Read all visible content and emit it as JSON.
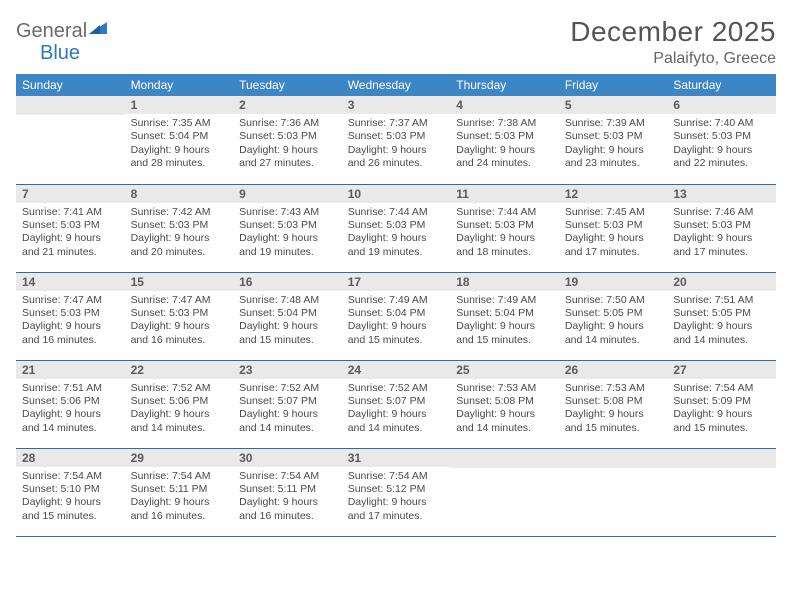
{
  "brand": {
    "part1": "General",
    "part2": "Blue"
  },
  "title": "December 2025",
  "location": "Palaifyto, Greece",
  "colors": {
    "header_bg": "#3d86c6",
    "header_text": "#ffffff",
    "daynum_bg": "#e9e9e9",
    "row_border": "#2f6aa8",
    "text": "#4a4a4a",
    "title": "#555555",
    "brand_gray": "#6b6b6b",
    "brand_blue": "#2f78c2"
  },
  "weekdays": [
    "Sunday",
    "Monday",
    "Tuesday",
    "Wednesday",
    "Thursday",
    "Friday",
    "Saturday"
  ],
  "start_blank": 1,
  "days": [
    {
      "n": 1,
      "sr": "7:35 AM",
      "ss": "5:04 PM",
      "dl": "9 hours and 28 minutes."
    },
    {
      "n": 2,
      "sr": "7:36 AM",
      "ss": "5:03 PM",
      "dl": "9 hours and 27 minutes."
    },
    {
      "n": 3,
      "sr": "7:37 AM",
      "ss": "5:03 PM",
      "dl": "9 hours and 26 minutes."
    },
    {
      "n": 4,
      "sr": "7:38 AM",
      "ss": "5:03 PM",
      "dl": "9 hours and 24 minutes."
    },
    {
      "n": 5,
      "sr": "7:39 AM",
      "ss": "5:03 PM",
      "dl": "9 hours and 23 minutes."
    },
    {
      "n": 6,
      "sr": "7:40 AM",
      "ss": "5:03 PM",
      "dl": "9 hours and 22 minutes."
    },
    {
      "n": 7,
      "sr": "7:41 AM",
      "ss": "5:03 PM",
      "dl": "9 hours and 21 minutes."
    },
    {
      "n": 8,
      "sr": "7:42 AM",
      "ss": "5:03 PM",
      "dl": "9 hours and 20 minutes."
    },
    {
      "n": 9,
      "sr": "7:43 AM",
      "ss": "5:03 PM",
      "dl": "9 hours and 19 minutes."
    },
    {
      "n": 10,
      "sr": "7:44 AM",
      "ss": "5:03 PM",
      "dl": "9 hours and 19 minutes."
    },
    {
      "n": 11,
      "sr": "7:44 AM",
      "ss": "5:03 PM",
      "dl": "9 hours and 18 minutes."
    },
    {
      "n": 12,
      "sr": "7:45 AM",
      "ss": "5:03 PM",
      "dl": "9 hours and 17 minutes."
    },
    {
      "n": 13,
      "sr": "7:46 AM",
      "ss": "5:03 PM",
      "dl": "9 hours and 17 minutes."
    },
    {
      "n": 14,
      "sr": "7:47 AM",
      "ss": "5:03 PM",
      "dl": "9 hours and 16 minutes."
    },
    {
      "n": 15,
      "sr": "7:47 AM",
      "ss": "5:03 PM",
      "dl": "9 hours and 16 minutes."
    },
    {
      "n": 16,
      "sr": "7:48 AM",
      "ss": "5:04 PM",
      "dl": "9 hours and 15 minutes."
    },
    {
      "n": 17,
      "sr": "7:49 AM",
      "ss": "5:04 PM",
      "dl": "9 hours and 15 minutes."
    },
    {
      "n": 18,
      "sr": "7:49 AM",
      "ss": "5:04 PM",
      "dl": "9 hours and 15 minutes."
    },
    {
      "n": 19,
      "sr": "7:50 AM",
      "ss": "5:05 PM",
      "dl": "9 hours and 14 minutes."
    },
    {
      "n": 20,
      "sr": "7:51 AM",
      "ss": "5:05 PM",
      "dl": "9 hours and 14 minutes."
    },
    {
      "n": 21,
      "sr": "7:51 AM",
      "ss": "5:06 PM",
      "dl": "9 hours and 14 minutes."
    },
    {
      "n": 22,
      "sr": "7:52 AM",
      "ss": "5:06 PM",
      "dl": "9 hours and 14 minutes."
    },
    {
      "n": 23,
      "sr": "7:52 AM",
      "ss": "5:07 PM",
      "dl": "9 hours and 14 minutes."
    },
    {
      "n": 24,
      "sr": "7:52 AM",
      "ss": "5:07 PM",
      "dl": "9 hours and 14 minutes."
    },
    {
      "n": 25,
      "sr": "7:53 AM",
      "ss": "5:08 PM",
      "dl": "9 hours and 14 minutes."
    },
    {
      "n": 26,
      "sr": "7:53 AM",
      "ss": "5:08 PM",
      "dl": "9 hours and 15 minutes."
    },
    {
      "n": 27,
      "sr": "7:54 AM",
      "ss": "5:09 PM",
      "dl": "9 hours and 15 minutes."
    },
    {
      "n": 28,
      "sr": "7:54 AM",
      "ss": "5:10 PM",
      "dl": "9 hours and 15 minutes."
    },
    {
      "n": 29,
      "sr": "7:54 AM",
      "ss": "5:11 PM",
      "dl": "9 hours and 16 minutes."
    },
    {
      "n": 30,
      "sr": "7:54 AM",
      "ss": "5:11 PM",
      "dl": "9 hours and 16 minutes."
    },
    {
      "n": 31,
      "sr": "7:54 AM",
      "ss": "5:12 PM",
      "dl": "9 hours and 17 minutes."
    }
  ],
  "labels": {
    "sunrise": "Sunrise:",
    "sunset": "Sunset:",
    "daylight": "Daylight:"
  }
}
